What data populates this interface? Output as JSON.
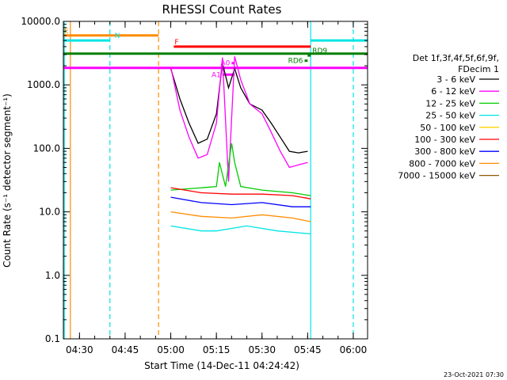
{
  "chart_data": {
    "type": "line",
    "title": "RHESSI Count Rates",
    "xlabel": "Start Time (14-Dec-11 04:24:42)",
    "ylabel": "Count Rate (s⁻¹ detector segment⁻¹)",
    "yscale": "log",
    "ylim": [
      0.1,
      10000
    ],
    "xlim_minutes": [
      0,
      100
    ],
    "x_ticks": [
      "04:30",
      "04:45",
      "05:00",
      "05:15",
      "05:30",
      "05:45",
      "06:00"
    ],
    "y_ticks": [
      "0.1",
      "1.0",
      "10.0",
      "100.0",
      "1000.0",
      "10000.0"
    ],
    "grid": false,
    "legend_position": "right",
    "legend_header": [
      "Det 1f,3f,4f,5f,6f,9f,",
      "FDecim 1"
    ],
    "series": [
      {
        "name": "3 - 6 keV",
        "color": "#000000",
        "x": [
          "05:00",
          "05:03",
          "05:06",
          "05:09",
          "05:12",
          "05:15",
          "05:17",
          "05:19",
          "05:21",
          "05:23",
          "05:26",
          "05:30",
          "05:33",
          "05:36",
          "05:39",
          "05:42",
          "05:45"
        ],
        "values": [
          1800,
          600,
          250,
          120,
          140,
          350,
          2200,
          900,
          1800,
          900,
          500,
          400,
          250,
          150,
          90,
          85,
          90
        ]
      },
      {
        "name": "6 - 12 keV",
        "color": "#ff00ff",
        "x": [
          "05:00",
          "05:03",
          "05:06",
          "05:09",
          "05:12",
          "05:15",
          "05:17",
          "05:19",
          "05:21",
          "05:23",
          "05:26",
          "05:30",
          "05:33",
          "05:36",
          "05:39",
          "05:42",
          "05:45"
        ],
        "values": [
          1900,
          400,
          150,
          70,
          80,
          250,
          2700,
          30,
          2800,
          1200,
          500,
          350,
          180,
          90,
          50,
          55,
          60
        ]
      },
      {
        "name": "12 - 25 keV",
        "color": "#00cc00",
        "x": [
          "05:00",
          "05:15",
          "05:16",
          "05:18",
          "05:20",
          "05:21",
          "05:23",
          "05:30",
          "05:40",
          "05:46"
        ],
        "values": [
          22,
          25,
          60,
          25,
          120,
          60,
          25,
          22,
          20,
          18
        ]
      },
      {
        "name": "25 - 50 keV",
        "color": "#00e5e5",
        "x": [
          "05:00",
          "05:10",
          "05:15",
          "05:25",
          "05:35",
          "05:46"
        ],
        "values": [
          6,
          5,
          5,
          6,
          5,
          4.5
        ]
      },
      {
        "name": "50 - 100 keV",
        "color": "#ffd200",
        "x": [],
        "values": []
      },
      {
        "name": "100 - 300 keV",
        "color": "#ff0000",
        "x": [
          "05:00",
          "05:10",
          "05:20",
          "05:30",
          "05:40",
          "05:46"
        ],
        "values": [
          24,
          20,
          19,
          19,
          18,
          16
        ]
      },
      {
        "name": "300 - 800 keV",
        "color": "#0000ff",
        "x": [
          "05:00",
          "05:10",
          "05:20",
          "05:30",
          "05:40",
          "05:46"
        ],
        "values": [
          17,
          14,
          13,
          14,
          12,
          12
        ]
      },
      {
        "name": "800 - 7000 keV",
        "color": "#ff8c00",
        "x": [
          "05:00",
          "05:10",
          "05:20",
          "05:30",
          "05:40",
          "05:46"
        ],
        "values": [
          10,
          8.5,
          8,
          9,
          8,
          7
        ]
      },
      {
        "name": "7000 - 15000 keV",
        "color": "#8b5a00",
        "x": [],
        "values": []
      }
    ],
    "segments": [
      {
        "label": "E",
        "color": "#ff8c00",
        "x_start": "04:24:42",
        "x_end": "04:56",
        "value": 6000
      },
      {
        "label": "N",
        "color": "#00e5e5",
        "x_start": "04:24:42",
        "x_end": "04:40",
        "value": 5000
      },
      {
        "label": "F",
        "color": "#ff0000",
        "x_start": "05:01",
        "x_end": "05:46",
        "value": 4000
      },
      {
        "label": "",
        "color": "#008000",
        "x_start": "04:24:42",
        "x_end": "06:04:42",
        "value": 3100
      },
      {
        "label": "RD9",
        "color": "#008000",
        "x_start": "05:45",
        "x_end": "05:46",
        "value": 2900
      },
      {
        "label": "RD6",
        "color": "#008000",
        "x_start": "05:44",
        "x_end": "05:45",
        "value": 2400
      },
      {
        "label": "",
        "color": "#ff00ff",
        "x_start": "04:24:42",
        "x_end": "06:04:42",
        "value": 1850
      },
      {
        "label": "A1",
        "color": "#ff00ff",
        "x_start": "05:17",
        "x_end": "05:21",
        "value": 1450
      },
      {
        "label": "A0",
        "color": "#ff00ff",
        "x_start": "05:20",
        "x_end": "05:21",
        "value": 2200
      },
      {
        "label": "",
        "color": "#00e5e5",
        "x_start": "05:46",
        "x_end": "06:04:42",
        "value": 5000
      }
    ],
    "vlines": [
      {
        "color": "#ff8c00",
        "style": "solid",
        "x": "04:27"
      },
      {
        "color": "#00e5e5",
        "style": "solid",
        "x": "04:25"
      },
      {
        "color": "#00e5e5",
        "style": "dashed",
        "x": "04:40"
      },
      {
        "color": "#ff8c00",
        "style": "dashed",
        "x": "04:56"
      },
      {
        "color": "#00e5e5",
        "style": "solid",
        "x": "05:46"
      },
      {
        "color": "#00e5e5",
        "style": "dashed",
        "x": "06:00"
      }
    ]
  },
  "footer": {
    "timestamp": "23-Oct-2021 07:30"
  }
}
